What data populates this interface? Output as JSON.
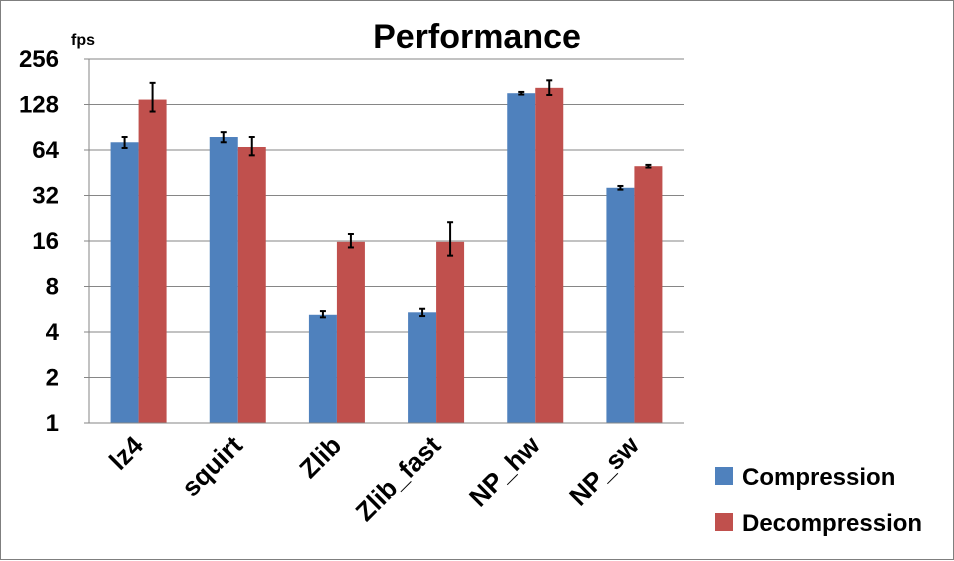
{
  "chart_data": {
    "type": "bar",
    "title": "Performance",
    "ylabel": "fps",
    "y_scale": "log2",
    "ylim": [
      1,
      256
    ],
    "y_ticks": [
      "1",
      "2",
      "4",
      "8",
      "16",
      "32",
      "64",
      "128",
      "256"
    ],
    "grid": true,
    "legend_position": "right-bottom",
    "categories": [
      "lz4",
      "squirt",
      "Zlib",
      "Zlib_fast",
      "NP_hw",
      "NP_sw"
    ],
    "series": [
      {
        "name": "Compression",
        "color": "#4f81bd",
        "values": [
          72,
          78,
          5.2,
          5.4,
          152,
          36
        ],
        "error": [
          [
            66,
            78
          ],
          [
            72,
            84
          ],
          [
            5.0,
            5.5
          ],
          [
            5.1,
            5.7
          ],
          [
            149,
            155
          ],
          [
            35,
            37
          ]
        ]
      },
      {
        "name": "Decompression",
        "color": "#c0504d",
        "values": [
          138,
          67,
          15.8,
          15.8,
          165,
          50
        ],
        "error": [
          [
            115,
            178
          ],
          [
            59,
            78
          ],
          [
            14.5,
            17.8
          ],
          [
            12.8,
            21.3
          ],
          [
            148,
            185
          ],
          [
            49,
            51
          ]
        ]
      }
    ]
  }
}
